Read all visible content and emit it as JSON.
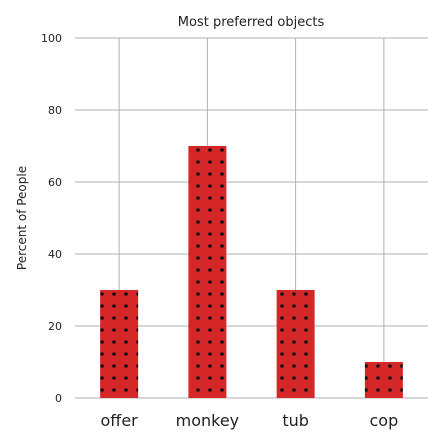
{
  "chart_data": {
    "type": "bar",
    "title": "Most preferred objects",
    "xlabel": "",
    "ylabel": "Percent of People",
    "categories": [
      "offer",
      "monkey",
      "tub",
      "cop"
    ],
    "values": [
      30,
      70,
      30,
      10
    ],
    "ylim": [
      0,
      100
    ],
    "yticks": [
      0,
      20,
      40,
      60,
      80,
      100
    ],
    "grid": true,
    "bar_color": "#d62728",
    "bar_pattern": "dots",
    "dot_color": "#111111"
  }
}
